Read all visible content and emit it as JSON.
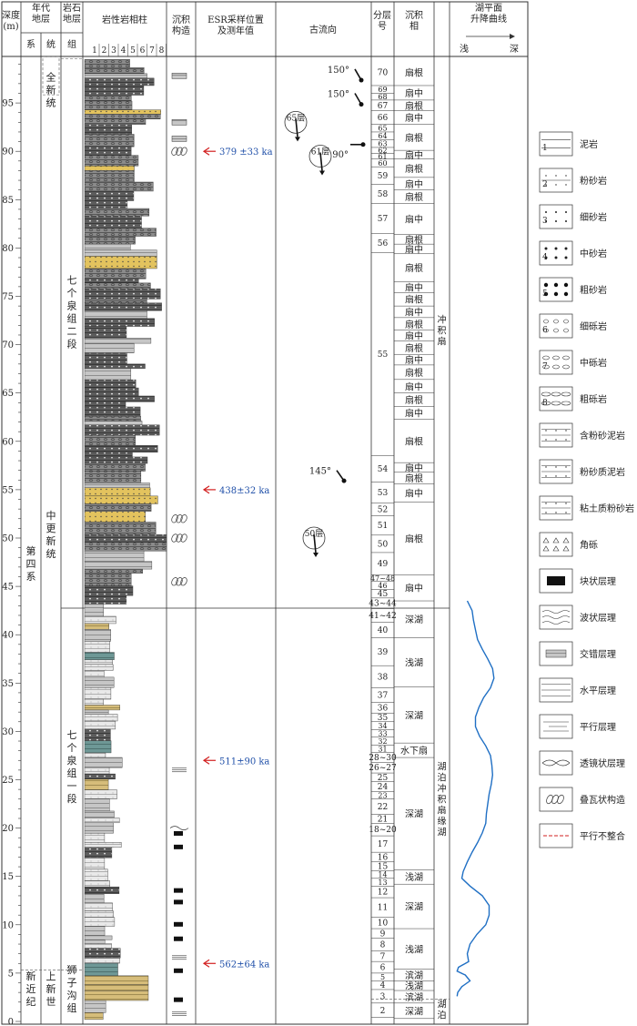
{
  "header": {
    "depth": "深度\n(m)",
    "era": "年代\n地层",
    "system": "系",
    "series": "统",
    "litho": "岩石\n地层",
    "group": "组",
    "column": "岩性岩相柱",
    "col_nums": [
      "1",
      "2",
      "3",
      "4",
      "5",
      "6",
      "7",
      "8"
    ],
    "sed": "沉积\n构造",
    "esr": "ESR采样位置\n及测年值",
    "paleo": "古流向",
    "layer": "分层\n号",
    "facies": "沉积\n相",
    "curve": "湖平面\n升降曲线",
    "shallow": "浅",
    "deep": "深"
  },
  "depth_ticks": [
    "0",
    "5",
    "10",
    "15",
    "20",
    "25",
    "30",
    "35",
    "40",
    "45",
    "50",
    "55",
    "60",
    "65",
    "70",
    "75",
    "80",
    "85",
    "90",
    "95"
  ],
  "strat": {
    "system_q": "第\n四\n系",
    "system_n": "新\n近\n纪",
    "series_holo": "全\n新\n统",
    "series_mid": "中\n更\n新\n统",
    "series_plio": "上\n新\n世",
    "fm_upper": "七\n个\n泉\n组\n二\n段",
    "fm_lower": "七\n个\n泉\n组\n一\n段",
    "fm_shizi": "狮\n子\n沟\n组"
  },
  "esr": [
    {
      "depth": 90,
      "label": "379 ±33 ka"
    },
    {
      "depth": 55,
      "label": "438±32 ka"
    },
    {
      "depth": 27,
      "label": "511±90 ka"
    },
    {
      "depth": 6,
      "label": "562±64 ka"
    }
  ],
  "paleo": [
    {
      "depth": 98.5,
      "label": "150°",
      "layer": ""
    },
    {
      "depth": 96,
      "label": "150°",
      "layer": ""
    },
    {
      "depth": 90.5,
      "label": "90°",
      "layer": ""
    },
    {
      "depth": 93,
      "label": "",
      "layer": "65层"
    },
    {
      "depth": 89.5,
      "label": "",
      "layer": "61层"
    },
    {
      "depth": 57,
      "label": "145°",
      "layer": ""
    },
    {
      "depth": 50,
      "label": "",
      "layer": "50层"
    }
  ],
  "layers": [
    {
      "no": "70",
      "top": 99.5,
      "bot": 96.8
    },
    {
      "no": "69",
      "top": 96.8,
      "bot": 96.0
    },
    {
      "no": "68",
      "top": 96.0,
      "bot": 95.3
    },
    {
      "no": "67",
      "top": 95.3,
      "bot": 94.2
    },
    {
      "no": "66",
      "top": 94.2,
      "bot": 92.8
    },
    {
      "no": "65",
      "top": 92.8,
      "bot": 92.0
    },
    {
      "no": "64",
      "top": 92.0,
      "bot": 91.2
    },
    {
      "no": "63",
      "top": 91.2,
      "bot": 90.4
    },
    {
      "no": "62",
      "top": 90.4,
      "bot": 89.8
    },
    {
      "no": "61",
      "top": 89.8,
      "bot": 89.2
    },
    {
      "no": "60",
      "top": 89.2,
      "bot": 88.4
    },
    {
      "no": "59",
      "top": 88.4,
      "bot": 86.6
    },
    {
      "no": "58",
      "top": 86.6,
      "bot": 84.6
    },
    {
      "no": "57",
      "top": 84.6,
      "bot": 81.5
    },
    {
      "no": "56",
      "top": 81.5,
      "bot": 79.5
    },
    {
      "no": "55",
      "top": 79.5,
      "bot": 58.5
    },
    {
      "no": "54",
      "top": 58.5,
      "bot": 55.8
    },
    {
      "no": "53",
      "top": 55.8,
      "bot": 53.6
    },
    {
      "no": "52",
      "top": 53.6,
      "bot": 52.3
    },
    {
      "no": "51",
      "top": 52.3,
      "bot": 50.3
    },
    {
      "no": "50",
      "top": 50.3,
      "bot": 48.5
    },
    {
      "no": "49",
      "top": 48.5,
      "bot": 46.2
    },
    {
      "no": "47~48",
      "top": 46.2,
      "bot": 45.5
    },
    {
      "no": "46",
      "top": 45.5,
      "bot": 44.7
    },
    {
      "no": "45",
      "top": 44.7,
      "bot": 43.8
    },
    {
      "no": "43~44",
      "top": 43.8,
      "bot": 42.7
    },
    {
      "no": "41~42",
      "top": 42.7,
      "bot": 41.3
    },
    {
      "no": "40",
      "top": 41.3,
      "bot": 39.7
    },
    {
      "no": "39",
      "top": 39.7,
      "bot": 36.8
    },
    {
      "no": "38",
      "top": 36.8,
      "bot": 34.5
    },
    {
      "no": "37",
      "top": 34.5,
      "bot": 33.0
    },
    {
      "no": "36",
      "top": 33.0,
      "bot": 31.9
    },
    {
      "no": "35",
      "top": 31.9,
      "bot": 31.0
    },
    {
      "no": "34",
      "top": 31.0,
      "bot": 30.2
    },
    {
      "no": "33",
      "top": 30.2,
      "bot": 29.4
    },
    {
      "no": "32",
      "top": 29.4,
      "bot": 28.6
    },
    {
      "no": "31",
      "top": 28.6,
      "bot": 27.8
    },
    {
      "no": "28~30",
      "top": 27.8,
      "bot": 26.8
    },
    {
      "no": "26~27",
      "top": 26.8,
      "bot": 25.7
    },
    {
      "no": "25",
      "top": 25.7,
      "bot": 24.8
    },
    {
      "no": "24",
      "top": 24.8,
      "bot": 23.8
    },
    {
      "no": "23",
      "top": 23.8,
      "bot": 23.0
    },
    {
      "no": "22",
      "top": 23.0,
      "bot": 21.4
    },
    {
      "no": "21",
      "top": 21.4,
      "bot": 20.5
    },
    {
      "no": "18~20",
      "top": 20.5,
      "bot": 19.2
    },
    {
      "no": "17",
      "top": 19.2,
      "bot": 17.5
    },
    {
      "no": "16",
      "top": 17.5,
      "bot": 16.5
    },
    {
      "no": "15",
      "top": 16.5,
      "bot": 15.6
    },
    {
      "no": "14",
      "top": 15.6,
      "bot": 14.8
    },
    {
      "no": "13",
      "top": 14.8,
      "bot": 14.0
    },
    {
      "no": "12",
      "top": 14.0,
      "bot": 12.8
    },
    {
      "no": "11",
      "top": 12.8,
      "bot": 10.8
    },
    {
      "no": "10",
      "top": 10.8,
      "bot": 9.6
    },
    {
      "no": "9",
      "top": 9.6,
      "bot": 8.6
    },
    {
      "no": "8",
      "top": 8.6,
      "bot": 7.3
    },
    {
      "no": "7",
      "top": 7.3,
      "bot": 6.2
    },
    {
      "no": "6",
      "top": 6.2,
      "bot": 5.0
    },
    {
      "no": "5",
      "top": 5.0,
      "bot": 4.2
    },
    {
      "no": "4",
      "top": 4.2,
      "bot": 3.3
    },
    {
      "no": "3",
      "top": 3.3,
      "bot": 1.9
    },
    {
      "no": "2",
      "top": 1.9,
      "bot": 0.4
    }
  ],
  "facies": [
    {
      "label": "扇根",
      "top": 99.5,
      "bot": 96.8
    },
    {
      "label": "扇中",
      "top": 96.8,
      "bot": 95.3
    },
    {
      "label": "扇根",
      "top": 95.3,
      "bot": 94.2
    },
    {
      "label": "扇中",
      "top": 94.2,
      "bot": 92.8
    },
    {
      "label": "扇根",
      "top": 92.8,
      "bot": 90.1
    },
    {
      "label": "扇中",
      "top": 90.1,
      "bot": 89.2
    },
    {
      "label": "扇根",
      "top": 89.2,
      "bot": 87.3
    },
    {
      "label": "扇中",
      "top": 87.3,
      "bot": 86.0
    },
    {
      "label": "扇根",
      "top": 86.0,
      "bot": 84.6
    },
    {
      "label": "扇中",
      "top": 84.6,
      "bot": 81.4
    },
    {
      "label": "扇根",
      "top": 81.4,
      "bot": 80.4
    },
    {
      "label": "扇中",
      "top": 80.4,
      "bot": 79.4
    },
    {
      "label": "扇根",
      "top": 79.4,
      "bot": 76.5
    },
    {
      "label": "扇中",
      "top": 76.5,
      "bot": 75.4
    },
    {
      "label": "扇根",
      "top": 75.4,
      "bot": 74.0
    },
    {
      "label": "扇中",
      "top": 74.0,
      "bot": 72.8
    },
    {
      "label": "扇根",
      "top": 72.8,
      "bot": 71.5
    },
    {
      "label": "扇中",
      "top": 71.5,
      "bot": 70.4
    },
    {
      "label": "扇根",
      "top": 70.4,
      "bot": 69.0
    },
    {
      "label": "扇中",
      "top": 69.0,
      "bot": 67.9
    },
    {
      "label": "扇根",
      "top": 67.9,
      "bot": 66.4
    },
    {
      "label": "扇中",
      "top": 66.4,
      "bot": 65.0
    },
    {
      "label": "扇根",
      "top": 65.0,
      "bot": 63.6
    },
    {
      "label": "扇中",
      "top": 63.6,
      "bot": 62.3
    },
    {
      "label": "扇根",
      "top": 62.3,
      "bot": 57.8
    },
    {
      "label": "扇中",
      "top": 57.8,
      "bot": 56.8
    },
    {
      "label": "扇根",
      "top": 56.8,
      "bot": 55.6
    },
    {
      "label": "扇中",
      "top": 55.6,
      "bot": 53.7
    },
    {
      "label": "扇根",
      "top": 53.7,
      "bot": 46.2
    },
    {
      "label": "扇中",
      "top": 46.2,
      "bot": 43.5
    },
    {
      "label": "深湖",
      "top": 43.5,
      "bot": 39.7
    },
    {
      "label": "浅湖",
      "top": 39.7,
      "bot": 34.6
    },
    {
      "label": "深湖",
      "top": 34.6,
      "bot": 28.8
    },
    {
      "label": "水下扇",
      "top": 28.8,
      "bot": 27.3
    },
    {
      "label": "深湖",
      "top": 27.3,
      "bot": 15.7
    },
    {
      "label": "浅湖",
      "top": 15.7,
      "bot": 14.2
    },
    {
      "label": "深湖",
      "top": 14.2,
      "bot": 9.6
    },
    {
      "label": "浅湖",
      "top": 9.6,
      "bot": 5.4
    },
    {
      "label": "滨湖",
      "top": 5.4,
      "bot": 4.2
    },
    {
      "label": "浅湖",
      "top": 4.2,
      "bot": 3.2
    },
    {
      "label": "滨湖",
      "top": 3.2,
      "bot": 1.9
    },
    {
      "label": "深湖",
      "top": 1.9,
      "bot": 0.3
    }
  ],
  "facies_group": [
    {
      "label": "冲\n积\n扇",
      "top": 99.5,
      "bot": 43.5
    },
    {
      "label": "湖\n泊\n冲\n积\n扇\n缘\n湖",
      "top": 43.5,
      "bot": 2.5
    },
    {
      "label": "湖\n泊",
      "top": 2.5,
      "bot": 0
    }
  ],
  "legend": [
    {
      "num": "1",
      "label": "泥岩",
      "icon": "mud"
    },
    {
      "num": "2",
      "label": "粉砂岩",
      "icon": "silt"
    },
    {
      "num": "3",
      "label": "细砂岩",
      "icon": "fine-sand"
    },
    {
      "num": "4",
      "label": "中砂岩",
      "icon": "medium-sand"
    },
    {
      "num": "5",
      "label": "粗砂岩",
      "icon": "coarse-sand"
    },
    {
      "num": "6",
      "label": "细砾岩",
      "icon": "fine-gravel"
    },
    {
      "num": "7",
      "label": "中砾岩",
      "icon": "medium-gravel"
    },
    {
      "num": "8",
      "label": "粗砾岩",
      "icon": "coarse-gravel"
    },
    {
      "num": "",
      "label": "含粉砂泥岩",
      "icon": "silty-mud"
    },
    {
      "num": "",
      "label": "粉砂质泥岩",
      "icon": "silty-mudstone"
    },
    {
      "num": "",
      "label": "粘土质粉砂岩",
      "icon": "clayey-silt"
    },
    {
      "num": "",
      "label": "角砾",
      "icon": "breccia"
    },
    {
      "num": "",
      "label": "块状层理",
      "icon": "massive"
    },
    {
      "num": "",
      "label": "波状层理",
      "icon": "wavy"
    },
    {
      "num": "",
      "label": "交错层理",
      "icon": "cross"
    },
    {
      "num": "",
      "label": "水平层理",
      "icon": "horizontal"
    },
    {
      "num": "",
      "label": "平行层理",
      "icon": "parallel"
    },
    {
      "num": "",
      "label": "透镜状层理",
      "icon": "lenticular"
    },
    {
      "num": "",
      "label": "叠瓦状构造",
      "icon": "imbricate"
    },
    {
      "num": "",
      "label": "平行不整合",
      "icon": "disconformity"
    }
  ],
  "lake_curve": [
    [
      43.5,
      0.18
    ],
    [
      42.5,
      0.25
    ],
    [
      41.5,
      0.27
    ],
    [
      40.5,
      0.3
    ],
    [
      39.5,
      0.33
    ],
    [
      38.5,
      0.4
    ],
    [
      37.5,
      0.48
    ],
    [
      36.5,
      0.55
    ],
    [
      35.5,
      0.57
    ],
    [
      34.5,
      0.52
    ],
    [
      33.5,
      0.42
    ],
    [
      32.5,
      0.35
    ],
    [
      31.5,
      0.3
    ],
    [
      30.5,
      0.3
    ],
    [
      29.5,
      0.36
    ],
    [
      28.5,
      0.45
    ],
    [
      27.5,
      0.52
    ],
    [
      26.5,
      0.54
    ],
    [
      25.5,
      0.55
    ],
    [
      24.5,
      0.53
    ],
    [
      23.5,
      0.5
    ],
    [
      22.5,
      0.48
    ],
    [
      21.5,
      0.46
    ],
    [
      20.5,
      0.45
    ],
    [
      19.5,
      0.4
    ],
    [
      18.5,
      0.33
    ],
    [
      17.5,
      0.25
    ],
    [
      16.5,
      0.18
    ],
    [
      15.5,
      0.12
    ],
    [
      14.8,
      0.1
    ],
    [
      14.0,
      0.22
    ],
    [
      13.0,
      0.4
    ],
    [
      12.0,
      0.5
    ],
    [
      11.0,
      0.5
    ],
    [
      10.0,
      0.45
    ],
    [
      9.0,
      0.32
    ],
    [
      8.0,
      0.22
    ],
    [
      7.0,
      0.18
    ],
    [
      6.2,
      0.2
    ],
    [
      5.6,
      0.05
    ],
    [
      5.2,
      0.03
    ],
    [
      4.8,
      0.15
    ],
    [
      4.2,
      0.22
    ],
    [
      3.6,
      0.1
    ],
    [
      3.0,
      0.04
    ],
    [
      2.6,
      0.03
    ]
  ]
}
